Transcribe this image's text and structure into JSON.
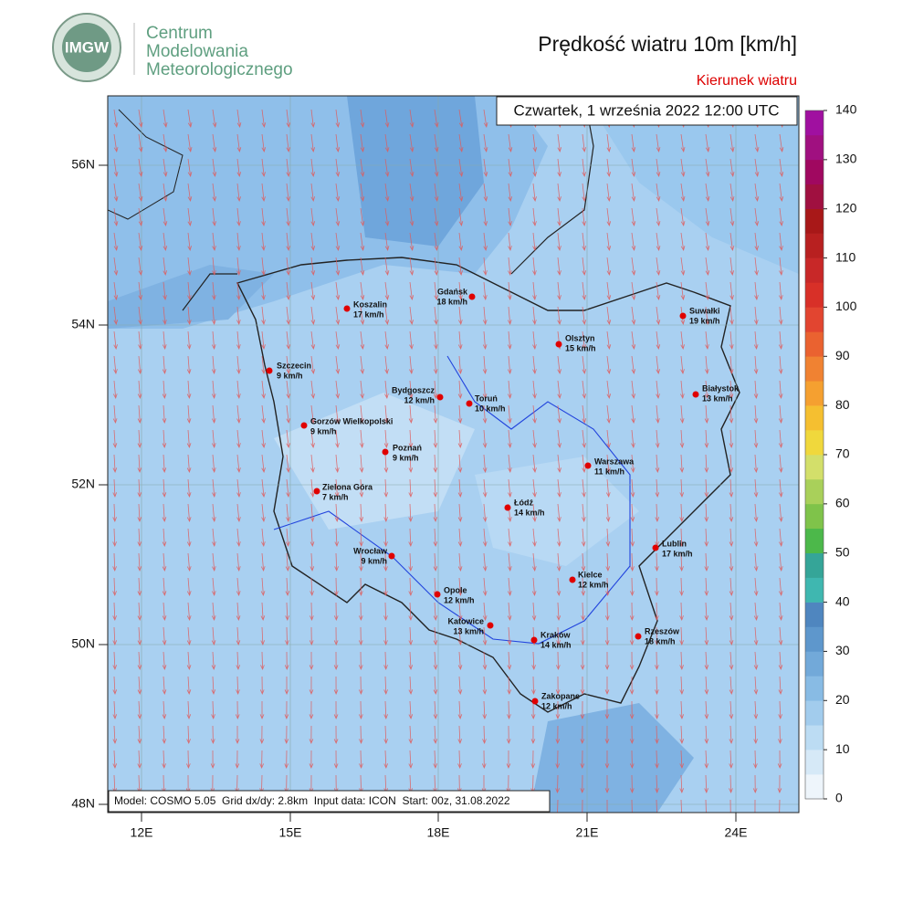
{
  "header": {
    "logo": "IMGW",
    "org": [
      "Centrum",
      "Modelowania",
      "Meteorologicznego"
    ],
    "title": "Prędkość wiatru 10m [km/h]",
    "subtitle": "Kierunek wiatru"
  },
  "map": {
    "date": "Czwartek, 1 września 2022 12:00 UTC",
    "footer": "Model: COSMO 5.05  Grid dx/dy: 2.8km  Input data: ICON  Start: 00z, 31.08.2022",
    "lat_ticks": [
      "56N",
      "54N",
      "52N",
      "50N",
      "48N"
    ],
    "lon_ticks": [
      "12E",
      "15E",
      "18E",
      "21E",
      "24E"
    ],
    "cities": [
      {
        "name": "Gdańsk",
        "speed": "18 km/h"
      },
      {
        "name": "Koszalin",
        "speed": "17 km/h"
      },
      {
        "name": "Suwałki",
        "speed": "19 km/h"
      },
      {
        "name": "Olsztyn",
        "speed": "15 km/h"
      },
      {
        "name": "Szczecin",
        "speed": "9 km/h"
      },
      {
        "name": "Bydgoszcz",
        "speed": "12 km/h"
      },
      {
        "name": "Toruń",
        "speed": "10 km/h"
      },
      {
        "name": "Białystok",
        "speed": "13 km/h"
      },
      {
        "name": "Gorzów Wielkopolski",
        "speed": "9 km/h"
      },
      {
        "name": "Poznań",
        "speed": "9 km/h"
      },
      {
        "name": "Warszawa",
        "speed": "11 km/h"
      },
      {
        "name": "Zielona Góra",
        "speed": "7 km/h"
      },
      {
        "name": "Łódź",
        "speed": "14 km/h"
      },
      {
        "name": "Lublin",
        "speed": "17 km/h"
      },
      {
        "name": "Wrocław",
        "speed": "9 km/h"
      },
      {
        "name": "Kielce",
        "speed": "12 km/h"
      },
      {
        "name": "Opole",
        "speed": "12 km/h"
      },
      {
        "name": "Katowice",
        "speed": "13 km/h"
      },
      {
        "name": "Rzeszów",
        "speed": "18 km/h"
      },
      {
        "name": "Kraków",
        "speed": "14 km/h"
      },
      {
        "name": "Zakopane",
        "speed": "12 km/h"
      }
    ]
  },
  "colorbar": {
    "lim": [
      0,
      140
    ],
    "ticks": [
      0,
      10,
      20,
      30,
      40,
      50,
      60,
      70,
      80,
      90,
      100,
      110,
      120,
      130,
      140
    ],
    "colors": [
      "#eef5fb",
      "#d6e9f7",
      "#bcdcf3",
      "#a2cced",
      "#88bbe4",
      "#72a9d9",
      "#5e97cc",
      "#4f86bf",
      "#3fb7b0",
      "#35a598",
      "#4cb84a",
      "#7fc34a",
      "#a9d05a",
      "#d3df6a",
      "#f0d83c",
      "#f5bf30",
      "#f5a030",
      "#f08232",
      "#ea6230",
      "#e24530",
      "#d83028",
      "#c82828",
      "#b82020",
      "#a81818",
      "#a01040",
      "#a00860",
      "#a01080",
      "#a010a0"
    ]
  }
}
